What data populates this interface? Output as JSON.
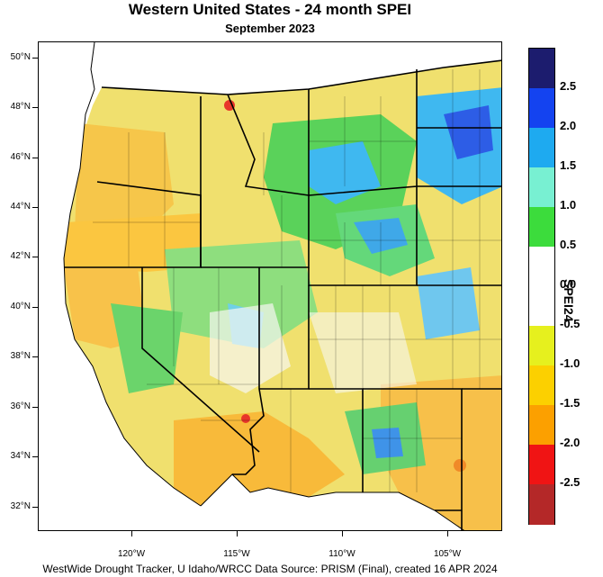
{
  "title": "Western United States - 24 month SPEI",
  "subtitle": "September 2023",
  "footer": "WestWide Drought Tracker, U Idaho/WRCC Data Source: PRISM (Final), created 16 APR 2024",
  "colorbar": {
    "title": "SPEI24",
    "ticks": [
      "2.5",
      "2.0",
      "1.5",
      "1.0",
      "0.5",
      "0.0",
      "-0.5",
      "-1.0",
      "-1.5",
      "-2.0",
      "-2.5"
    ],
    "colors": [
      "#1c1c6e",
      "#1443f0",
      "#1eaaf0",
      "#78f0d2",
      "#3cdc3c",
      "#ffffff",
      "#ffffff",
      "#e6f01e",
      "#fcd000",
      "#fca000",
      "#f01414",
      "#b42828"
    ]
  },
  "latitude_labels": [
    "50°N",
    "48°N",
    "46°N",
    "44°N",
    "42°N",
    "40°N",
    "38°N",
    "36°N",
    "34°N",
    "32°N"
  ],
  "longitude_labels": [
    "120°W",
    "115°W",
    "110°W",
    "105°W"
  ]
}
